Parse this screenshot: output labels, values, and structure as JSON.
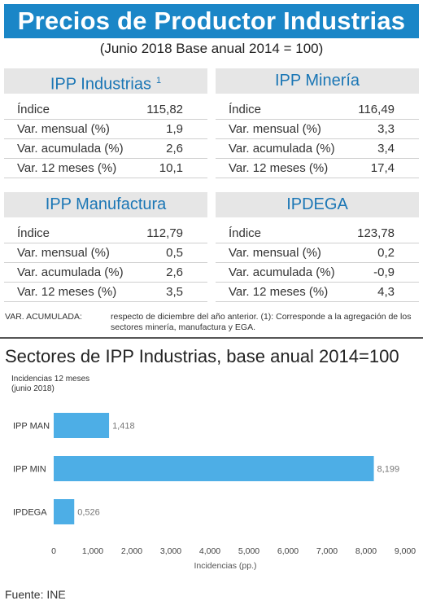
{
  "header": {
    "title": "Precios de Productor Industrias",
    "subtitle": "(Junio 2018 Base anual 2014 = 100)"
  },
  "cards": [
    {
      "title": "IPP Industrias",
      "sup": "1",
      "rows": [
        {
          "label": "Índice",
          "value": "115,82"
        },
        {
          "label": "Var. mensual (%)",
          "value": "1,9"
        },
        {
          "label": "Var. acumulada (%)",
          "value": "2,6"
        },
        {
          "label": "Var. 12 meses (%)",
          "value": "10,1"
        }
      ]
    },
    {
      "title": "IPP Minería",
      "sup": "",
      "rows": [
        {
          "label": "Índice",
          "value": "116,49"
        },
        {
          "label": "Var. mensual (%)",
          "value": "3,3"
        },
        {
          "label": "Var. acumulada (%)",
          "value": "3,4"
        },
        {
          "label": "Var. 12 meses (%)",
          "value": "17,4"
        }
      ]
    },
    {
      "title": "IPP Manufactura",
      "sup": "",
      "rows": [
        {
          "label": "Índice",
          "value": "112,79"
        },
        {
          "label": "Var. mensual (%)",
          "value": "0,5"
        },
        {
          "label": "Var. acumulada (%)",
          "value": "2,6"
        },
        {
          "label": "Var. 12 meses (%)",
          "value": "3,5"
        }
      ]
    },
    {
      "title": "IPDEGA",
      "sup": "",
      "rows": [
        {
          "label": "Índice",
          "value": "123,78"
        },
        {
          "label": "Var. mensual (%)",
          "value": "0,2"
        },
        {
          "label": "Var. acumulada (%)",
          "value": "-0,9"
        },
        {
          "label": "Var. 12 meses (%)",
          "value": "4,3"
        }
      ]
    }
  ],
  "note": {
    "key": "VAR. ACUMULADA:",
    "line1": "respecto de diciembre del año anterior. (1): Corresponde a la agregación de los",
    "line2": "sectores minería, manufactura y EGA."
  },
  "chart_data": {
    "type": "bar",
    "orientation": "horizontal",
    "title": "Sectores de IPP Industrias, base anual 2014=100",
    "subtitle_line1": "Incidencias 12 meses",
    "subtitle_line2": "(junio 2018)",
    "categories": [
      "IPP MAN",
      "IPP MIN",
      "IPDEGA"
    ],
    "values": [
      1.418,
      8.199,
      0.526
    ],
    "value_labels": [
      "1,418",
      "8,199",
      "0,526"
    ],
    "xlim": [
      0,
      9
    ],
    "xticks": [
      "0",
      "1,000",
      "2,000",
      "3,000",
      "4,000",
      "5,000",
      "6,000",
      "7,000",
      "8,000",
      "9,000"
    ],
    "xlabel": "Incidencias (pp.)",
    "bar_color": "#4daee6",
    "grid": false
  },
  "footer": {
    "source": "Fuente: INE"
  }
}
